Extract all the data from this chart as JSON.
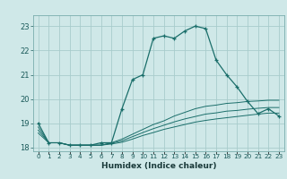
{
  "xlabel": "Humidex (Indice chaleur)",
  "bg_color": "#cfe8e8",
  "grid_color": "#a8cccc",
  "line_color": "#1a6e6a",
  "x_main": [
    0,
    1,
    2,
    3,
    4,
    5,
    6,
    7,
    8,
    9,
    10,
    11,
    12,
    13,
    14,
    15,
    16,
    17,
    18,
    19,
    20,
    21,
    22,
    23
  ],
  "y_main": [
    19.0,
    18.2,
    18.2,
    18.1,
    18.1,
    18.1,
    18.2,
    18.2,
    19.6,
    20.8,
    21.0,
    22.5,
    22.6,
    22.5,
    22.8,
    23.0,
    22.9,
    21.6,
    21.0,
    20.5,
    19.9,
    19.4,
    19.6,
    19.3
  ],
  "x_line1": [
    0,
    1,
    2,
    3,
    4,
    5,
    6,
    7,
    8,
    9,
    10,
    11,
    12,
    13,
    14,
    15,
    16,
    17,
    18,
    19,
    20,
    21,
    22,
    23
  ],
  "y_line1": [
    18.85,
    18.2,
    18.2,
    18.1,
    18.1,
    18.1,
    18.1,
    18.2,
    18.35,
    18.55,
    18.75,
    18.95,
    19.1,
    19.3,
    19.45,
    19.6,
    19.7,
    19.75,
    19.82,
    19.85,
    19.9,
    19.92,
    19.95,
    19.95
  ],
  "x_line2": [
    0,
    1,
    2,
    3,
    4,
    5,
    6,
    7,
    8,
    9,
    10,
    11,
    12,
    13,
    14,
    15,
    16,
    17,
    18,
    19,
    20,
    21,
    22,
    23
  ],
  "y_line2": [
    18.72,
    18.2,
    18.2,
    18.1,
    18.1,
    18.1,
    18.1,
    18.18,
    18.28,
    18.45,
    18.62,
    18.78,
    18.92,
    19.06,
    19.18,
    19.28,
    19.38,
    19.43,
    19.5,
    19.53,
    19.58,
    19.62,
    19.65,
    19.65
  ],
  "x_line3": [
    0,
    1,
    2,
    3,
    4,
    5,
    6,
    7,
    8,
    9,
    10,
    11,
    12,
    13,
    14,
    15,
    16,
    17,
    18,
    19,
    20,
    21,
    22,
    23
  ],
  "y_line3": [
    18.6,
    18.2,
    18.2,
    18.1,
    18.1,
    18.1,
    18.1,
    18.15,
    18.22,
    18.35,
    18.5,
    18.62,
    18.75,
    18.85,
    18.95,
    19.05,
    19.12,
    19.18,
    19.23,
    19.28,
    19.33,
    19.38,
    19.42,
    19.42
  ],
  "ylim": [
    17.85,
    23.45
  ],
  "xlim": [
    -0.5,
    23.5
  ],
  "yticks": [
    18,
    19,
    20,
    21,
    22,
    23
  ],
  "xtick_labels": [
    "0",
    "1",
    "2",
    "3",
    "4",
    "5",
    "6",
    "7",
    "8",
    "9",
    "10",
    "11",
    "12",
    "13",
    "14",
    "15",
    "16",
    "17",
    "18",
    "19",
    "20",
    "21",
    "22",
    "23"
  ]
}
